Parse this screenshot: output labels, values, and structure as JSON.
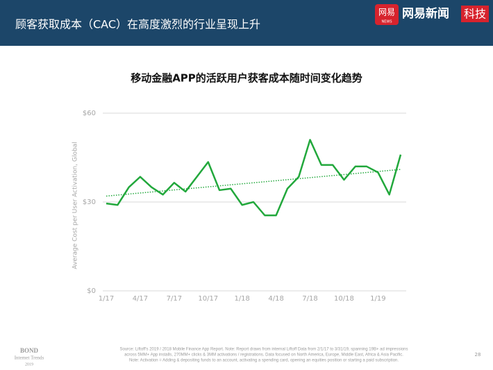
{
  "header": {
    "title": "顾客获取成本（CAC）在高度激烈的行业呈现上升",
    "logo_badge": "网易",
    "logo_badge_sub": "NEWS",
    "logo_text": "网易新闻",
    "logo_tag": "科技"
  },
  "chart_data": {
    "type": "line",
    "title": "移动金融APP的活跃用户获客成本随时间变化趋势",
    "y_label": "Average Cost per User Activation, Global",
    "categories": [
      "1/17",
      null,
      null,
      "4/17",
      null,
      null,
      "7/17",
      null,
      null,
      "10/17",
      null,
      null,
      "1/18",
      null,
      null,
      "4/18",
      null,
      null,
      "7/18",
      null,
      null,
      "10/18",
      null,
      null,
      "1/19",
      null,
      null
    ],
    "values": [
      29.5,
      29,
      35,
      38.5,
      35,
      32.5,
      36.5,
      33.5,
      38.5,
      43.5,
      34,
      34.5,
      29,
      30,
      25.5,
      25.5,
      34.5,
      38.5,
      51,
      42.5,
      42.5,
      37.5,
      42,
      42,
      40,
      32.5,
      46
    ],
    "color": "#22a83c",
    "trend_line": [
      32,
      41
    ],
    "ylim": [
      0,
      60
    ],
    "yticks": [
      {
        "value": 0,
        "label": "$0"
      },
      {
        "value": 30,
        "label": "$30"
      },
      {
        "value": 60,
        "label": "$60"
      }
    ],
    "grid": true
  },
  "footer": {
    "brand": [
      "BOND",
      "Internet Trends",
      "2019"
    ],
    "source": [
      "Source: Liftoff's 2019 / 2018 Mobile Finance App Report.  Note: Report draws from internal Liftoff Data from 2/1/17 to 3/31/19, spanning 19B+ ad impressions",
      "across 5MM+ App installs, 270MM+ clicks & 3MM activations / registrations.  Data focused on North America, Europe, Middle East, Africa & Asia Pacific.",
      "Note: Activation = Adding & depositing funds to an account, activating a spending card, opening an equities position or starting a paid subscription."
    ],
    "page": "28"
  }
}
